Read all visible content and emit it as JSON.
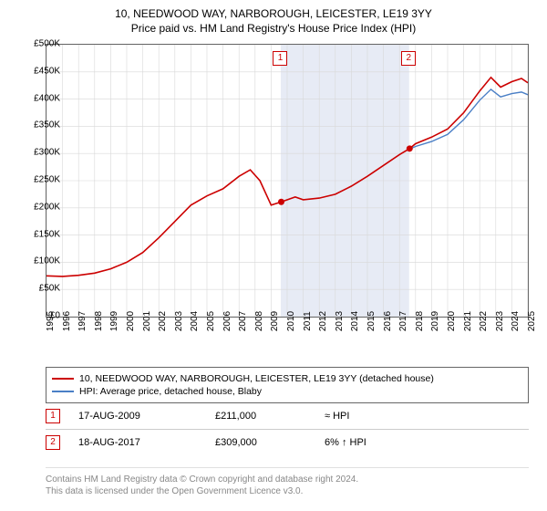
{
  "title": {
    "line1": "10, NEEDWOOD WAY, NARBOROUGH, LEICESTER, LE19 3YY",
    "line2": "Price paid vs. HM Land Registry's House Price Index (HPI)"
  },
  "chart": {
    "type": "line",
    "background_color": "#ffffff",
    "grid_color": "#d8d8d8",
    "shaded_band_color": "#e7ebf5",
    "border_color": "#666666",
    "ylim": [
      0,
      500000
    ],
    "ytick_step": 50000,
    "ytick_labels": [
      "£0",
      "£50K",
      "£100K",
      "£150K",
      "£200K",
      "£250K",
      "£300K",
      "£350K",
      "£400K",
      "£450K",
      "£500K"
    ],
    "xlim": [
      1995,
      2025
    ],
    "xtick_step": 1,
    "xtick_labels": [
      "1995",
      "1996",
      "1997",
      "1998",
      "1999",
      "2000",
      "2001",
      "2002",
      "2003",
      "2004",
      "2005",
      "2006",
      "2007",
      "2008",
      "2009",
      "2010",
      "2011",
      "2012",
      "2013",
      "2014",
      "2015",
      "2016",
      "2017",
      "2018",
      "2019",
      "2020",
      "2021",
      "2022",
      "2023",
      "2024",
      "2025"
    ],
    "shaded_band_xstart": 2009.6,
    "shaded_band_xend": 2017.6,
    "series": [
      {
        "name": "10, NEEDWOOD WAY, NARBOROUGH, LEICESTER, LE19 3YY (detached house)",
        "color": "#cc0000",
        "line_width": 1.6,
        "points": [
          [
            1995.0,
            75000
          ],
          [
            1996.0,
            74000
          ],
          [
            1997.0,
            76000
          ],
          [
            1998.0,
            80000
          ],
          [
            1999.0,
            88000
          ],
          [
            2000.0,
            100000
          ],
          [
            2001.0,
            118000
          ],
          [
            2002.0,
            145000
          ],
          [
            2003.0,
            175000
          ],
          [
            2004.0,
            205000
          ],
          [
            2005.0,
            222000
          ],
          [
            2006.0,
            235000
          ],
          [
            2007.0,
            258000
          ],
          [
            2007.7,
            270000
          ],
          [
            2008.3,
            250000
          ],
          [
            2009.0,
            205000
          ],
          [
            2009.63,
            211000
          ],
          [
            2010.5,
            220000
          ],
          [
            2011.0,
            215000
          ],
          [
            2012.0,
            218000
          ],
          [
            2013.0,
            225000
          ],
          [
            2014.0,
            240000
          ],
          [
            2015.0,
            258000
          ],
          [
            2016.0,
            278000
          ],
          [
            2017.0,
            298000
          ],
          [
            2017.63,
            309000
          ],
          [
            2018.0,
            318000
          ],
          [
            2019.0,
            330000
          ],
          [
            2020.0,
            345000
          ],
          [
            2021.0,
            375000
          ],
          [
            2022.0,
            415000
          ],
          [
            2022.7,
            440000
          ],
          [
            2023.3,
            422000
          ],
          [
            2024.0,
            432000
          ],
          [
            2024.6,
            438000
          ],
          [
            2025.0,
            430000
          ]
        ]
      },
      {
        "name": "HPI: Average price, detached house, Blaby",
        "color": "#4a7fc6",
        "line_width": 1.4,
        "points": [
          [
            2017.63,
            308000
          ],
          [
            2018.0,
            313000
          ],
          [
            2019.0,
            322000
          ],
          [
            2020.0,
            335000
          ],
          [
            2021.0,
            362000
          ],
          [
            2022.0,
            398000
          ],
          [
            2022.7,
            418000
          ],
          [
            2023.3,
            404000
          ],
          [
            2024.0,
            410000
          ],
          [
            2024.6,
            413000
          ],
          [
            2025.0,
            408000
          ]
        ]
      }
    ],
    "markers": [
      {
        "label": "1",
        "x": 2009.63,
        "y": 211000,
        "box_y_offset": -40,
        "dot_color": "#cc0000"
      },
      {
        "label": "2",
        "x": 2017.63,
        "y": 309000,
        "box_y_offset": -40,
        "dot_color": "#cc0000"
      }
    ]
  },
  "legend": {
    "items": [
      {
        "color": "#cc0000",
        "label": "10, NEEDWOOD WAY, NARBOROUGH, LEICESTER, LE19 3YY (detached house)"
      },
      {
        "color": "#4a7fc6",
        "label": "HPI: Average price, detached house, Blaby"
      }
    ]
  },
  "sales": [
    {
      "marker": "1",
      "date": "17-AUG-2009",
      "price": "£211,000",
      "hpi": "≈ HPI"
    },
    {
      "marker": "2",
      "date": "18-AUG-2017",
      "price": "£309,000",
      "hpi": "6% ↑ HPI"
    }
  ],
  "credit": {
    "line1": "Contains HM Land Registry data © Crown copyright and database right 2024.",
    "line2": "This data is licensed under the Open Government Licence v3.0."
  },
  "style": {
    "title_fontsize": 12,
    "axis_label_fontsize": 10,
    "legend_fontsize": 10.5,
    "credit_color": "#888888"
  }
}
